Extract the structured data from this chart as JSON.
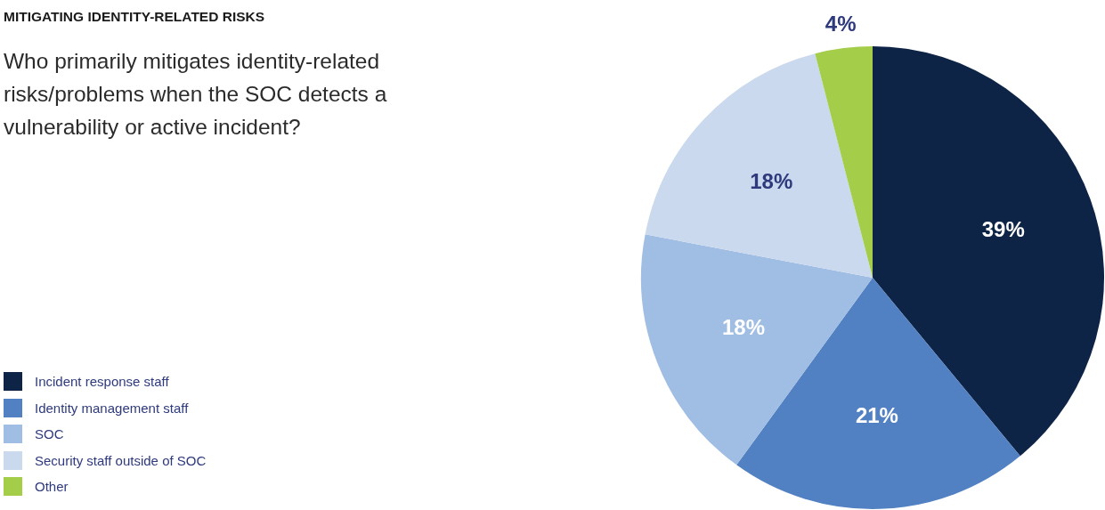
{
  "chart_data": {
    "type": "pie",
    "title": "MITIGATING IDENTITY-RELATED RISKS",
    "subtitle": "Who primarily mitigates identity-related risks/problems when the SOC detects a vulnerability or active incident?",
    "categories": [
      "Incident response staff",
      "Identity management staff",
      "SOC",
      "Security staff outside of SOC",
      "Other"
    ],
    "values": [
      39,
      21,
      18,
      18,
      4
    ],
    "colors": [
      "#0e2446",
      "#5181c2",
      "#a0bde3",
      "#cad9ed",
      "#a4cd4a"
    ],
    "value_labels": [
      "39%",
      "21%",
      "18%",
      "18%",
      "4%"
    ],
    "legend": "bottom left"
  }
}
